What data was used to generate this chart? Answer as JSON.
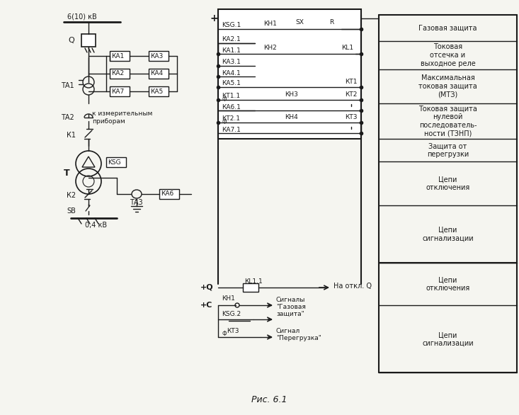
{
  "bg_color": "#f5f5f0",
  "line_color": "#1a1a1a",
  "title": "Рис. 6.1",
  "right_labels": [
    "Газовая защита",
    "Токовая\nотсечка и\nвыходное реле",
    "Максимальная\nтоковая защита\n(МТЗ)",
    "Токовая защита\nнулевой\nпоследователь-\nности (ТЗНП)",
    "Защита от\nперегрузки",
    "Цепи\nотключения",
    "Цепи\nсигнализации"
  ]
}
